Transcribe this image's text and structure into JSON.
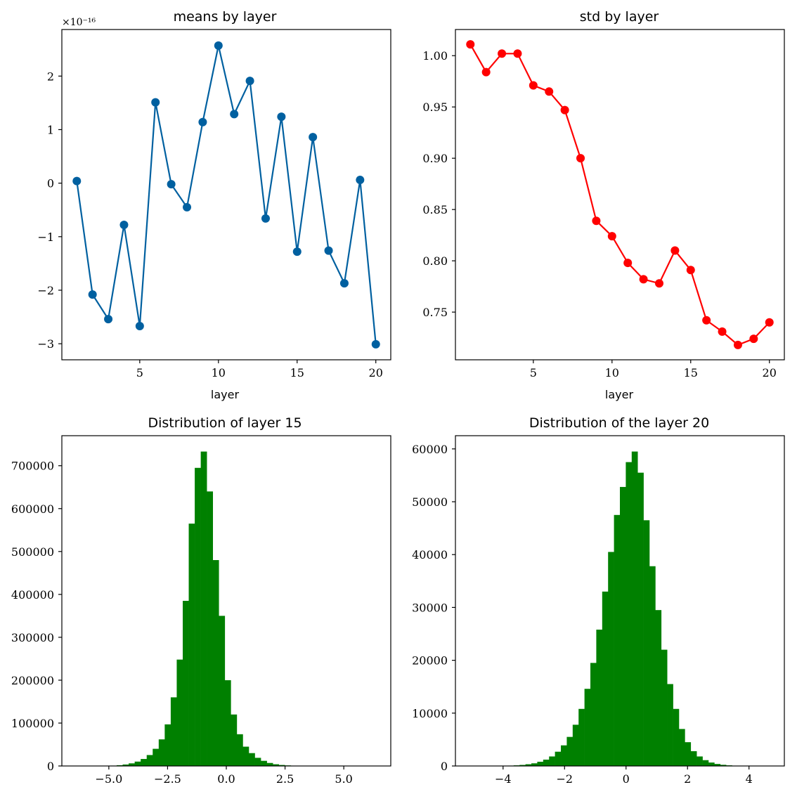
{
  "chart_data": [
    {
      "type": "line",
      "title": "means by layer",
      "xlabel": "layer",
      "ylabel": "",
      "y_multiplier": "×10⁻¹⁶",
      "color": "#0060a0",
      "x": [
        1,
        2,
        3,
        4,
        5,
        6,
        7,
        8,
        9,
        10,
        11,
        12,
        13,
        14,
        15,
        16,
        17,
        18,
        19,
        20
      ],
      "y": [
        0.04,
        -2.08,
        -2.54,
        -0.78,
        -2.67,
        1.51,
        -0.02,
        -0.45,
        1.14,
        2.57,
        1.29,
        1.91,
        -0.66,
        1.24,
        -1.28,
        0.86,
        -1.26,
        -1.87,
        0.06,
        -3.01
      ],
      "xlim": [
        0.05,
        20.95
      ],
      "ylim": [
        -3.3,
        2.87
      ],
      "xticks": [
        5,
        10,
        15,
        20
      ],
      "xtick_labels": [
        "5",
        "10",
        "15",
        "20"
      ],
      "yticks": [
        -3,
        -2,
        -1,
        0,
        1,
        2
      ],
      "ytick_labels": [
        "−3",
        "−2",
        "−1",
        "0",
        "1",
        "2"
      ]
    },
    {
      "type": "line",
      "title": "std by layer",
      "xlabel": "layer",
      "ylabel": "",
      "color": "#ff0000",
      "x": [
        1,
        2,
        3,
        4,
        5,
        6,
        7,
        8,
        9,
        10,
        11,
        12,
        13,
        14,
        15,
        16,
        17,
        18,
        19,
        20
      ],
      "y": [
        1.011,
        0.984,
        1.002,
        1.002,
        0.971,
        0.965,
        0.947,
        0.9,
        0.839,
        0.824,
        0.798,
        0.782,
        0.778,
        0.81,
        0.791,
        0.742,
        0.731,
        0.718,
        0.724,
        0.74
      ],
      "xlim": [
        0.05,
        20.95
      ],
      "ylim": [
        0.7035,
        1.0255
      ],
      "xticks": [
        5,
        10,
        15,
        20
      ],
      "xtick_labels": [
        "5",
        "10",
        "15",
        "20"
      ],
      "yticks": [
        0.75,
        0.8,
        0.85,
        0.9,
        0.95,
        1.0
      ],
      "ytick_labels": [
        "0.75",
        "0.80",
        "0.85",
        "0.90",
        "0.95",
        "1.00"
      ]
    },
    {
      "type": "bar",
      "title": "Distribution of layer 15",
      "xlabel": "",
      "ylabel": "",
      "color": "#008000",
      "bin_start": -6.2,
      "bin_width": 0.2556,
      "values": [
        10,
        20,
        60,
        180,
        420,
        880,
        1800,
        3400,
        6100,
        10200,
        16300,
        25500,
        40000,
        62000,
        97000,
        160000,
        248000,
        385000,
        565000,
        695000,
        733000,
        640000,
        480000,
        350000,
        200000,
        120000,
        74000,
        45000,
        30000,
        19000,
        12000,
        7000,
        4000,
        2300,
        1300,
        700,
        350,
        170,
        80,
        40,
        20,
        10,
        5,
        2,
        1,
        1,
        1,
        1,
        1,
        1
      ],
      "xlim": [
        -7.0,
        7.0
      ],
      "ylim": [
        0,
        770000
      ],
      "xticks": [
        -5,
        -2.5,
        0,
        2.5,
        5
      ],
      "xtick_labels": [
        "−5.0",
        "−2.5",
        "0.0",
        "2.5",
        "5.0"
      ],
      "yticks": [
        0,
        100000,
        200000,
        300000,
        400000,
        500000,
        600000,
        700000
      ],
      "ytick_labels": [
        "0",
        "100000",
        "200000",
        "300000",
        "400000",
        "500000",
        "600000",
        "700000"
      ]
    },
    {
      "type": "bar",
      "title": "Distribution of the layer 20",
      "xlabel": "",
      "ylabel": "",
      "color": "#008000",
      "bin_start": -5.0,
      "bin_width": 0.192,
      "values": [
        1,
        2,
        5,
        10,
        20,
        40,
        70,
        120,
        200,
        330,
        500,
        800,
        1200,
        1800,
        2700,
        3900,
        5500,
        7800,
        10800,
        14600,
        19500,
        25800,
        33000,
        40500,
        47500,
        52800,
        57500,
        59500,
        55500,
        46500,
        37800,
        29500,
        22000,
        15500,
        10800,
        7000,
        4500,
        2800,
        1800,
        1100,
        650,
        380,
        220,
        120,
        60,
        30,
        15,
        8,
        4,
        2
      ],
      "xlim": [
        -5.55,
        5.15
      ],
      "ylim": [
        0,
        62500
      ],
      "xticks": [
        -4,
        -2,
        0,
        2,
        4
      ],
      "xtick_labels": [
        "−4",
        "−2",
        "0",
        "2",
        "4"
      ],
      "yticks": [
        0,
        10000,
        20000,
        30000,
        40000,
        50000,
        60000
      ],
      "ytick_labels": [
        "0",
        "10000",
        "20000",
        "30000",
        "40000",
        "50000",
        "60000"
      ]
    }
  ]
}
